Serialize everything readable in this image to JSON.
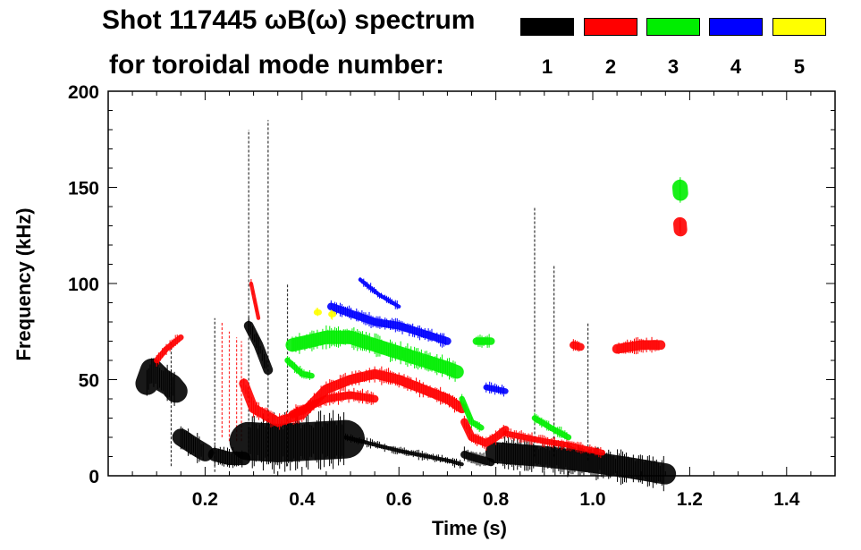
{
  "chart_data": {
    "type": "heatmap",
    "title_line1": "Shot 117445 ωB(ω) spectrum",
    "title_line2": "for toroidal mode number:",
    "xlabel": "Time (s)",
    "ylabel": "Frequency (kHz)",
    "xlim": [
      0,
      1.5
    ],
    "ylim": [
      0,
      200
    ],
    "xticks": [
      0.2,
      0.4,
      0.6,
      0.8,
      1.0,
      1.2,
      1.4
    ],
    "xtick_labels": [
      "0.2",
      "0.4",
      "0.6",
      "0.8",
      "1.0",
      "1.2",
      "1.4"
    ],
    "yticks": [
      0,
      50,
      100,
      150,
      200
    ],
    "ytick_labels": [
      "0",
      "50",
      "100",
      "150",
      "200"
    ],
    "legend": [
      {
        "label": "1",
        "color": "#000000"
      },
      {
        "label": "2",
        "color": "#ff0000"
      },
      {
        "label": "3",
        "color": "#00ee00"
      },
      {
        "label": "4",
        "color": "#0000ff"
      },
      {
        "label": "5",
        "color": "#ffff00"
      }
    ],
    "features": [
      {
        "mode": 1,
        "width_khz": 12,
        "points": [
          [
            0.08,
            48
          ],
          [
            0.09,
            55
          ],
          [
            0.11,
            50
          ],
          [
            0.13,
            47
          ],
          [
            0.14,
            44
          ]
        ]
      },
      {
        "mode": 1,
        "width_khz": 9,
        "points": [
          [
            0.15,
            20
          ],
          [
            0.18,
            15
          ],
          [
            0.2,
            12
          ]
        ]
      },
      {
        "mode": 1,
        "width_khz": 7,
        "points": [
          [
            0.22,
            11
          ],
          [
            0.25,
            9
          ],
          [
            0.28,
            9
          ]
        ]
      },
      {
        "mode": 1,
        "width_khz": 20,
        "points": [
          [
            0.29,
            18
          ],
          [
            0.35,
            17
          ],
          [
            0.42,
            18
          ],
          [
            0.49,
            19
          ]
        ]
      },
      {
        "mode": 1,
        "width_khz": 2,
        "points": [
          [
            0.49,
            20
          ],
          [
            0.6,
            13
          ],
          [
            0.7,
            8
          ],
          [
            0.73,
            6
          ]
        ]
      },
      {
        "mode": 1,
        "width_khz": 4,
        "points": [
          [
            0.735,
            11
          ],
          [
            0.76,
            9
          ],
          [
            0.79,
            7
          ]
        ]
      },
      {
        "mode": 1,
        "width_khz": 11,
        "points": [
          [
            0.8,
            12
          ],
          [
            0.9,
            10
          ],
          [
            1.0,
            7
          ],
          [
            1.08,
            4
          ],
          [
            1.15,
            1
          ]
        ]
      },
      {
        "mode": 1,
        "width_khz": 5,
        "points": [
          [
            0.29,
            78
          ],
          [
            0.31,
            68
          ],
          [
            0.33,
            55
          ]
        ]
      },
      {
        "mode": 2,
        "width_khz": 3,
        "points": [
          [
            0.1,
            60
          ],
          [
            0.12,
            66
          ],
          [
            0.15,
            72
          ]
        ]
      },
      {
        "mode": 2,
        "width_khz": 2,
        "points": [
          [
            0.295,
            100
          ],
          [
            0.31,
            82
          ]
        ]
      },
      {
        "mode": 2,
        "width_khz": 5,
        "points": [
          [
            0.28,
            48
          ],
          [
            0.3,
            35
          ],
          [
            0.35,
            28
          ],
          [
            0.4,
            32
          ],
          [
            0.45,
            45
          ],
          [
            0.5,
            50
          ],
          [
            0.55,
            53
          ],
          [
            0.6,
            50
          ],
          [
            0.65,
            45
          ],
          [
            0.7,
            40
          ],
          [
            0.73,
            35
          ]
        ]
      },
      {
        "mode": 2,
        "width_khz": 4,
        "points": [
          [
            0.38,
            32
          ],
          [
            0.45,
            40
          ],
          [
            0.5,
            42
          ],
          [
            0.55,
            40
          ]
        ]
      },
      {
        "mode": 2,
        "width_khz": 4,
        "points": [
          [
            0.735,
            28
          ],
          [
            0.75,
            20
          ],
          [
            0.78,
            17
          ],
          [
            0.8,
            20
          ],
          [
            0.82,
            24
          ]
        ]
      },
      {
        "mode": 2,
        "width_khz": 3,
        "points": [
          [
            0.82,
            22
          ],
          [
            0.9,
            18
          ],
          [
            0.95,
            16
          ],
          [
            1.02,
            12
          ]
        ]
      },
      {
        "mode": 2,
        "width_khz": 4,
        "points": [
          [
            0.96,
            68
          ],
          [
            0.975,
            67
          ]
        ]
      },
      {
        "mode": 2,
        "width_khz": 5,
        "points": [
          [
            1.05,
            66
          ],
          [
            1.1,
            68
          ],
          [
            1.14,
            68
          ]
        ]
      },
      {
        "mode": 2,
        "width_khz": 7,
        "points": [
          [
            1.18,
            131
          ],
          [
            1.181,
            128
          ]
        ]
      },
      {
        "mode": 3,
        "width_khz": 7,
        "points": [
          [
            0.38,
            68
          ],
          [
            0.45,
            72
          ],
          [
            0.5,
            72
          ],
          [
            0.55,
            68
          ],
          [
            0.6,
            64
          ],
          [
            0.65,
            60
          ],
          [
            0.7,
            56
          ],
          [
            0.72,
            54
          ]
        ]
      },
      {
        "mode": 3,
        "width_khz": 3,
        "points": [
          [
            0.37,
            60
          ],
          [
            0.4,
            53
          ],
          [
            0.42,
            52
          ]
        ]
      },
      {
        "mode": 3,
        "width_khz": 3,
        "points": [
          [
            0.73,
            40
          ],
          [
            0.75,
            28
          ],
          [
            0.77,
            25
          ]
        ]
      },
      {
        "mode": 3,
        "width_khz": 4,
        "points": [
          [
            0.76,
            70
          ],
          [
            0.79,
            70
          ]
        ]
      },
      {
        "mode": 3,
        "width_khz": 3,
        "points": [
          [
            0.88,
            30
          ],
          [
            0.92,
            24
          ],
          [
            0.95,
            20
          ]
        ]
      },
      {
        "mode": 3,
        "width_khz": 8,
        "points": [
          [
            1.18,
            150
          ],
          [
            1.181,
            147
          ]
        ]
      },
      {
        "mode": 4,
        "width_khz": 4,
        "points": [
          [
            0.46,
            88
          ],
          [
            0.55,
            80
          ],
          [
            0.6,
            78
          ],
          [
            0.65,
            74
          ],
          [
            0.7,
            70
          ]
        ]
      },
      {
        "mode": 4,
        "width_khz": 2,
        "points": [
          [
            0.52,
            102
          ],
          [
            0.56,
            94
          ],
          [
            0.6,
            88
          ]
        ]
      },
      {
        "mode": 4,
        "width_khz": 3,
        "points": [
          [
            0.78,
            46
          ],
          [
            0.82,
            44
          ]
        ]
      },
      {
        "mode": 5,
        "width_khz": 3,
        "points": [
          [
            0.43,
            85
          ],
          [
            0.435,
            85
          ]
        ]
      },
      {
        "mode": 5,
        "width_khz": 3,
        "points": [
          [
            0.46,
            84
          ],
          [
            0.465,
            84
          ]
        ]
      }
    ],
    "streaks": [
      {
        "mode": 1,
        "t": 0.13,
        "f": [
          5,
          70
        ]
      },
      {
        "mode": 1,
        "t": 0.22,
        "f": [
          2,
          82
        ]
      },
      {
        "mode": 1,
        "t": 0.29,
        "f": [
          10,
          180
        ]
      },
      {
        "mode": 1,
        "t": 0.33,
        "f": [
          10,
          185
        ]
      },
      {
        "mode": 1,
        "t": 0.37,
        "f": [
          5,
          100
        ]
      },
      {
        "mode": 1,
        "t": 0.88,
        "f": [
          10,
          140
        ]
      },
      {
        "mode": 1,
        "t": 0.92,
        "f": [
          10,
          110
        ]
      },
      {
        "mode": 1,
        "t": 0.99,
        "f": [
          8,
          80
        ]
      },
      {
        "mode": 2,
        "t": 0.235,
        "f": [
          20,
          80
        ]
      },
      {
        "mode": 2,
        "t": 0.25,
        "f": [
          18,
          75
        ]
      },
      {
        "mode": 2,
        "t": 0.265,
        "f": [
          18,
          72
        ]
      },
      {
        "mode": 2,
        "t": 0.275,
        "f": [
          18,
          70
        ]
      }
    ]
  }
}
